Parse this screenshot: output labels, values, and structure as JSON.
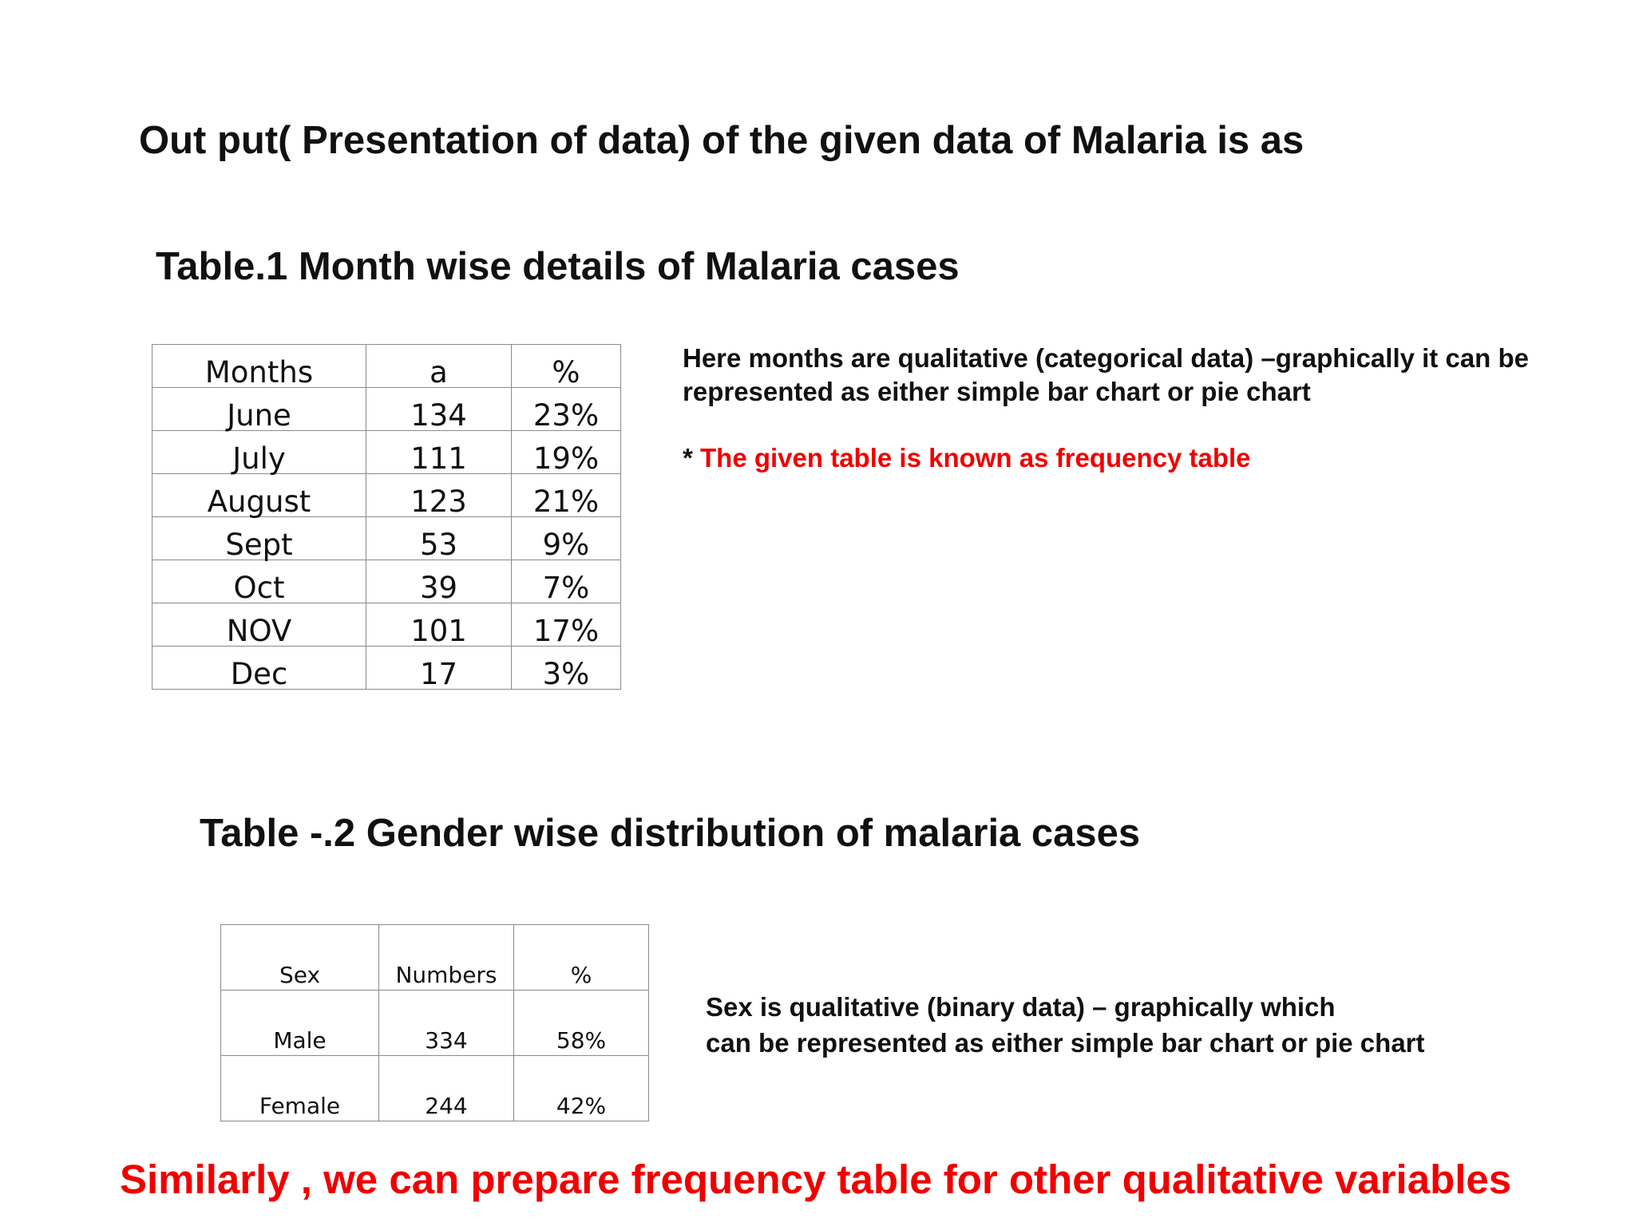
{
  "title": "Out put( Presentation of data) of the given  data of Malaria is as",
  "table1": {
    "title": "Table.1 Month wise details of Malaria cases",
    "headers": [
      "Months",
      "a",
      "%"
    ],
    "rows": [
      [
        "June",
        "134",
        "23%"
      ],
      [
        "July",
        "111",
        "19%"
      ],
      [
        "August",
        "123",
        "21%"
      ],
      [
        "Sept",
        "53",
        "9%"
      ],
      [
        "Oct",
        "39",
        "7%"
      ],
      [
        "NOV",
        "101",
        "17%"
      ],
      [
        "Dec",
        "17",
        "3%"
      ]
    ]
  },
  "note1": {
    "line1": "Here months are qualitative (categorical data) –graphically it can be",
    "line2": "represented as  either  simple bar chart or pie chart",
    "star": "* ",
    "red_text": "The given table is known as frequency table"
  },
  "table2": {
    "title": "Table -.2 Gender wise distribution of malaria cases",
    "headers": [
      "Sex",
      "Numbers",
      "%"
    ],
    "rows": [
      [
        "Male",
        "334",
        "58%"
      ],
      [
        "Female",
        "244",
        "42%"
      ]
    ]
  },
  "note2": {
    "line1": "Sex is qualitative (binary data) – graphically which",
    "line2": "can be represented  as either  simple bar chart or pie chart"
  },
  "footer": "Similarly , we can prepare frequency table for other qualitative  variables",
  "colors": {
    "accent_red": "#f00000",
    "text": "#111111",
    "table_border": "#8a8a8a"
  }
}
